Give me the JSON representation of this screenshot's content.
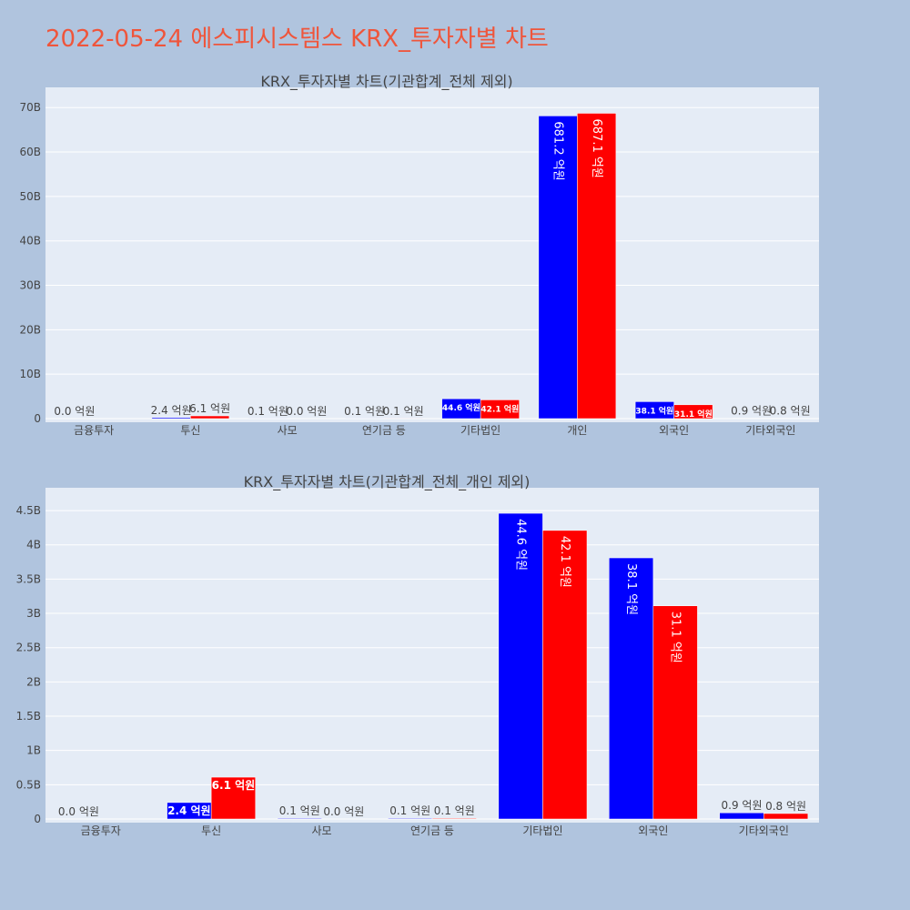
{
  "page": {
    "title": "2022-05-24 에스피시스템스 KRX_투자자별 차트"
  },
  "colors": {
    "background": "#b0c4de",
    "plot_bg": "#e5ecf6",
    "series_a": "#0000ff",
    "series_b": "#ff0000",
    "title": "#ef553b"
  },
  "chart_data": [
    {
      "type": "bar",
      "title": "KRX_투자자별 차트(기관합계_전체 제외)",
      "categories": [
        "금융투자",
        "투신",
        "사모",
        "연기금 등",
        "기타법인",
        "개인",
        "외국인",
        "기타외국인"
      ],
      "series": [
        {
          "color": "#0000ff",
          "values": [
            0.0,
            0.24,
            0.01,
            0.01,
            4.46,
            68.12,
            3.81,
            0.09
          ],
          "labels": [
            "0.0 억원",
            "2.4 억원",
            "0.1 억원",
            "0.1 억원",
            "44.6 억원",
            "681.2 억원",
            "38.1 억원",
            "0.9 억원"
          ]
        },
        {
          "color": "#ff0000",
          "values": [
            0.0,
            0.61,
            0.0,
            0.01,
            4.21,
            68.71,
            3.11,
            0.08
          ],
          "labels": [
            "",
            "6.1 억원",
            "0.0 억원",
            "0.1 억원",
            "42.1 억원",
            "687.1 억원",
            "31.1 억원",
            "0.8 억원"
          ]
        }
      ],
      "yticks": [
        0,
        10,
        20,
        30,
        40,
        50,
        60,
        70
      ],
      "ytick_labels": [
        "0",
        "10B",
        "20B",
        "30B",
        "40B",
        "50B",
        "60B",
        "70B"
      ],
      "ylim": [
        0,
        72.5
      ],
      "grid": true,
      "barmode": "group"
    },
    {
      "type": "bar",
      "title": "KRX_투자자별 차트(기관합계_전체_개인 제외)",
      "categories": [
        "금융투자",
        "투신",
        "사모",
        "연기금 등",
        "기타법인",
        "외국인",
        "기타외국인"
      ],
      "series": [
        {
          "color": "#0000ff",
          "values": [
            0.0,
            0.24,
            0.01,
            0.01,
            4.46,
            3.81,
            0.09
          ],
          "labels": [
            "0.0 억원",
            "2.4 억원",
            "0.1 억원",
            "0.1 억원",
            "44.6 억원",
            "38.1 억원",
            "0.9 억원"
          ]
        },
        {
          "color": "#ff0000",
          "values": [
            0.0,
            0.61,
            0.0,
            0.01,
            4.21,
            3.11,
            0.08
          ],
          "labels": [
            "",
            "6.1 억원",
            "0.0 억원",
            "0.1 억원",
            "42.1 억원",
            "31.1 억원",
            "0.8 억원"
          ]
        }
      ],
      "yticks": [
        0,
        0.5,
        1,
        1.5,
        2,
        2.5,
        3,
        3.5,
        4,
        4.5
      ],
      "ytick_labels": [
        "0",
        "0.5B",
        "1B",
        "1.5B",
        "2B",
        "2.5B",
        "3B",
        "3.5B",
        "4B",
        "4.5B"
      ],
      "ylim": [
        0,
        4.7
      ],
      "grid": true,
      "barmode": "group"
    }
  ]
}
